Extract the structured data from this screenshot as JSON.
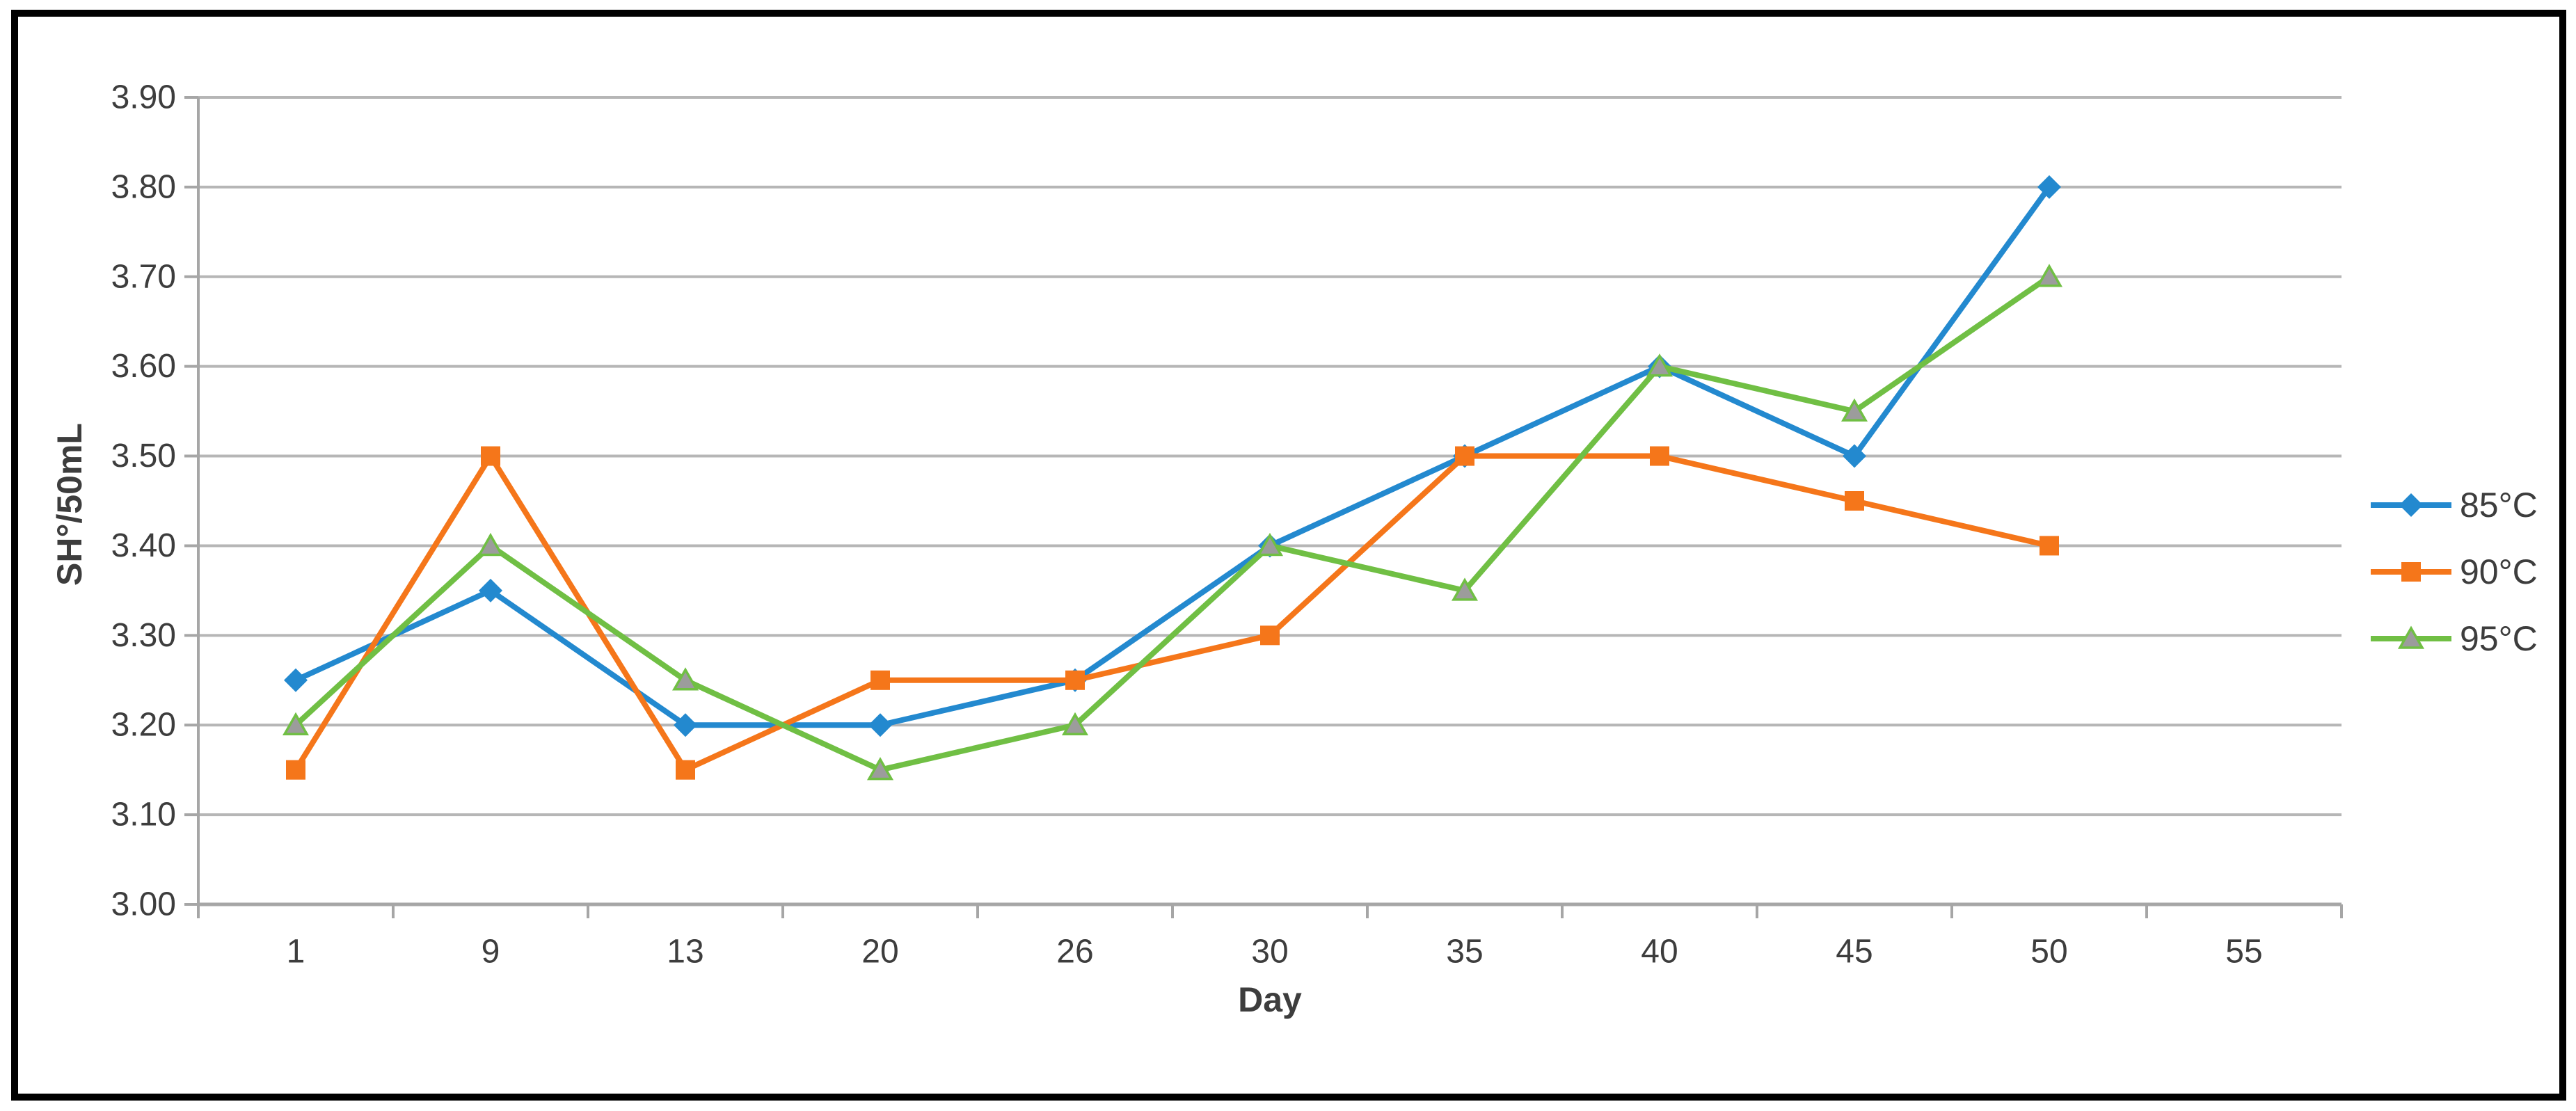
{
  "window": {
    "background": "#ffffff",
    "border_color": "#000000"
  },
  "chart_data": {
    "type": "line",
    "title": "",
    "xlabel": "Day",
    "ylabel": "SH°/50mL",
    "categories": [
      "1",
      "9",
      "13",
      "20",
      "26",
      "30",
      "35",
      "40",
      "45",
      "50",
      "55"
    ],
    "series": [
      {
        "name": "85°C",
        "color": "#2389cf",
        "marker": "diamond",
        "marker_fill": "#2389cf",
        "values": [
          3.25,
          3.35,
          3.2,
          3.2,
          3.25,
          3.4,
          3.5,
          3.6,
          3.5,
          3.8,
          null
        ]
      },
      {
        "name": "90°C",
        "color": "#f5761a",
        "marker": "square",
        "marker_fill": "#f5761a",
        "values": [
          3.15,
          3.5,
          3.15,
          3.25,
          3.25,
          3.3,
          3.5,
          3.5,
          3.45,
          3.4,
          null
        ]
      },
      {
        "name": "95°C",
        "color": "#70bf44",
        "marker": "triangle",
        "marker_fill": "#9c9c9c",
        "values": [
          3.2,
          3.4,
          3.25,
          3.15,
          3.2,
          3.4,
          3.35,
          3.6,
          3.55,
          3.7,
          null
        ]
      }
    ],
    "y_ticks": [
      "3.00",
      "3.10",
      "3.20",
      "3.30",
      "3.40",
      "3.50",
      "3.60",
      "3.70",
      "3.80",
      "3.90"
    ],
    "ylim": [
      3.0,
      3.9
    ],
    "grid": true,
    "legend_position": "right",
    "colors": {
      "gridline": "#b6b6b6",
      "axis": "#a6a6a6",
      "tick_text": "#3d3d3d"
    }
  }
}
